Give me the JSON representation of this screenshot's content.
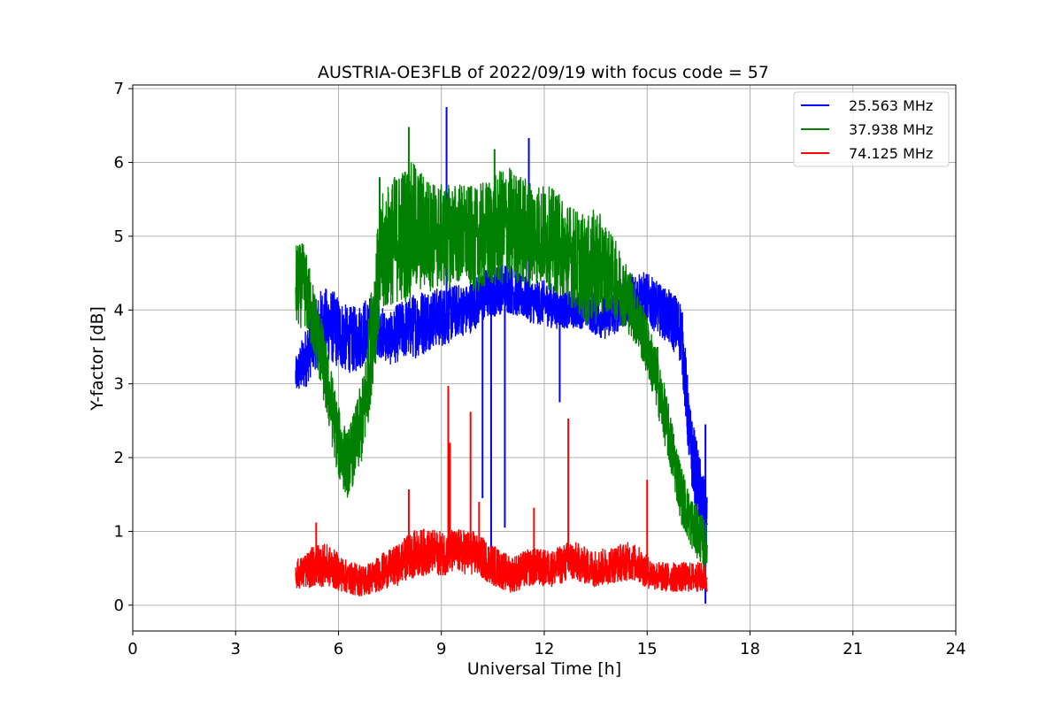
{
  "chart_data": {
    "type": "line",
    "title": "AUSTRIA-OE3FLB of 2022/09/19 with focus code = 57",
    "xlabel": "Universal Time [h]",
    "ylabel": "Y-factor [dB]",
    "xlim": [
      0,
      24
    ],
    "ylim": [
      -0.35,
      7.05
    ],
    "xticks": [
      0,
      3,
      6,
      9,
      12,
      15,
      18,
      21,
      24
    ],
    "yticks": [
      0,
      1,
      2,
      3,
      4,
      5,
      6,
      7
    ],
    "grid": true,
    "legend_position": "top-right",
    "series": [
      {
        "name": "25.563 MHz",
        "color": "#0000ff",
        "x": [
          4.75,
          5.0,
          5.25,
          5.5,
          5.75,
          6.0,
          6.25,
          6.5,
          6.75,
          7.0,
          7.25,
          7.5,
          7.75,
          8.0,
          8.25,
          8.5,
          8.75,
          9.0,
          9.25,
          9.5,
          9.75,
          10.0,
          10.25,
          10.5,
          10.75,
          11.0,
          11.25,
          11.5,
          11.75,
          12.0,
          12.25,
          12.5,
          12.75,
          13.0,
          13.25,
          13.5,
          13.75,
          14.0,
          14.25,
          14.5,
          14.75,
          15.0,
          15.25,
          15.5,
          15.75,
          16.0,
          16.25,
          16.5,
          16.75
        ],
        "y": [
          3.1,
          3.3,
          3.6,
          3.8,
          3.8,
          3.7,
          3.6,
          3.6,
          3.7,
          3.8,
          3.7,
          3.6,
          3.7,
          3.75,
          3.8,
          3.85,
          3.9,
          3.9,
          3.95,
          4.0,
          4.0,
          4.1,
          4.2,
          4.25,
          4.3,
          4.3,
          4.2,
          4.15,
          4.1,
          4.1,
          4.05,
          4.0,
          4.0,
          4.0,
          4.0,
          3.95,
          3.9,
          3.95,
          4.05,
          4.15,
          4.2,
          4.15,
          4.05,
          3.95,
          3.85,
          3.7,
          2.2,
          1.6,
          1.1
        ],
        "spread": [
          0.25,
          0.4,
          0.45,
          0.5,
          0.5,
          0.5,
          0.45,
          0.45,
          0.45,
          0.4,
          0.35,
          0.35,
          0.4,
          0.4,
          0.45,
          0.45,
          0.4,
          0.4,
          0.4,
          0.35,
          0.35,
          0.35,
          0.35,
          0.35,
          0.35,
          0.35,
          0.3,
          0.3,
          0.3,
          0.3,
          0.3,
          0.25,
          0.25,
          0.25,
          0.25,
          0.3,
          0.3,
          0.3,
          0.3,
          0.35,
          0.35,
          0.35,
          0.35,
          0.35,
          0.4,
          0.45,
          0.5,
          0.5,
          0.45
        ],
        "spikes": [
          [
            9.15,
            6.75
          ],
          [
            11.55,
            6.33
          ],
          [
            10.45,
            0.75
          ],
          [
            10.85,
            1.05
          ],
          [
            10.2,
            1.45
          ],
          [
            12.45,
            2.75
          ],
          [
            16.7,
            0.02
          ],
          [
            16.7,
            2.45
          ]
        ]
      },
      {
        "name": "37.938 MHz",
        "color": "#008000",
        "x": [
          4.75,
          5.0,
          5.25,
          5.5,
          5.75,
          6.0,
          6.25,
          6.5,
          6.75,
          7.0,
          7.25,
          7.5,
          7.75,
          8.0,
          8.25,
          8.5,
          8.75,
          9.0,
          9.25,
          9.5,
          9.75,
          10.0,
          10.25,
          10.5,
          10.75,
          11.0,
          11.25,
          11.5,
          11.75,
          12.0,
          12.25,
          12.5,
          12.75,
          13.0,
          13.25,
          13.5,
          13.75,
          14.0,
          14.25,
          14.5,
          14.75,
          15.0,
          15.25,
          15.5,
          15.75,
          16.0,
          16.25,
          16.5,
          16.75
        ],
        "y": [
          4.3,
          4.35,
          3.9,
          3.4,
          2.8,
          2.2,
          1.9,
          2.2,
          2.6,
          3.8,
          4.7,
          4.9,
          5.0,
          5.05,
          5.1,
          5.05,
          5.0,
          5.0,
          5.0,
          5.05,
          5.0,
          4.95,
          5.0,
          5.05,
          5.1,
          5.15,
          5.1,
          5.05,
          5.05,
          5.0,
          4.95,
          4.85,
          4.75,
          4.65,
          4.5,
          4.6,
          4.6,
          4.45,
          4.3,
          4.1,
          3.85,
          3.5,
          3.1,
          2.6,
          2.05,
          1.5,
          1.15,
          0.95,
          0.8
        ],
        "spread": [
          0.6,
          0.55,
          0.5,
          0.5,
          0.5,
          0.5,
          0.45,
          0.5,
          0.6,
          0.8,
          0.85,
          0.85,
          0.9,
          0.95,
          0.9,
          0.8,
          0.75,
          0.7,
          0.7,
          0.7,
          0.7,
          0.7,
          0.75,
          0.75,
          0.8,
          0.8,
          0.75,
          0.75,
          0.7,
          0.7,
          0.7,
          0.7,
          0.7,
          0.7,
          0.75,
          0.8,
          0.6,
          0.55,
          0.5,
          0.45,
          0.4,
          0.4,
          0.4,
          0.4,
          0.4,
          0.4,
          0.35,
          0.35,
          0.3
        ],
        "spikes": [
          [
            8.05,
            6.48
          ],
          [
            10.55,
            6.18
          ],
          [
            7.2,
            5.8
          ],
          [
            15.3,
            3.5
          ],
          [
            16.65,
            0.45
          ]
        ]
      },
      {
        "name": "74.125 MHz",
        "color": "#ff0000",
        "x": [
          4.75,
          5.0,
          5.25,
          5.5,
          5.75,
          6.0,
          6.25,
          6.5,
          6.75,
          7.0,
          7.25,
          7.5,
          7.75,
          8.0,
          8.25,
          8.5,
          8.75,
          9.0,
          9.25,
          9.5,
          9.75,
          10.0,
          10.25,
          10.5,
          10.75,
          11.0,
          11.25,
          11.5,
          11.75,
          12.0,
          12.25,
          12.5,
          12.75,
          13.0,
          13.25,
          13.5,
          13.75,
          14.0,
          14.25,
          14.5,
          14.75,
          15.0,
          15.25,
          15.5,
          15.75,
          16.0,
          16.25,
          16.5,
          16.75
        ],
        "y": [
          0.42,
          0.45,
          0.52,
          0.55,
          0.52,
          0.45,
          0.38,
          0.35,
          0.33,
          0.38,
          0.45,
          0.5,
          0.55,
          0.65,
          0.7,
          0.72,
          0.72,
          0.7,
          0.72,
          0.73,
          0.72,
          0.7,
          0.62,
          0.55,
          0.48,
          0.42,
          0.45,
          0.5,
          0.52,
          0.5,
          0.5,
          0.55,
          0.6,
          0.58,
          0.52,
          0.5,
          0.52,
          0.55,
          0.58,
          0.6,
          0.55,
          0.45,
          0.4,
          0.38,
          0.38,
          0.38,
          0.38,
          0.38,
          0.36
        ],
        "spread": [
          0.2,
          0.22,
          0.28,
          0.3,
          0.28,
          0.25,
          0.22,
          0.22,
          0.22,
          0.22,
          0.25,
          0.25,
          0.28,
          0.3,
          0.32,
          0.32,
          0.3,
          0.3,
          0.3,
          0.3,
          0.3,
          0.3,
          0.28,
          0.28,
          0.26,
          0.25,
          0.25,
          0.25,
          0.25,
          0.25,
          0.25,
          0.26,
          0.28,
          0.26,
          0.25,
          0.25,
          0.25,
          0.25,
          0.26,
          0.26,
          0.25,
          0.22,
          0.2,
          0.2,
          0.2,
          0.2,
          0.2,
          0.2,
          0.2
        ],
        "spikes": [
          [
            9.2,
            2.97
          ],
          [
            9.85,
            2.62
          ],
          [
            12.7,
            2.53
          ],
          [
            15.0,
            1.7
          ],
          [
            8.05,
            1.57
          ],
          [
            9.25,
            2.2
          ],
          [
            10.1,
            1.4
          ],
          [
            11.7,
            1.32
          ],
          [
            5.35,
            1.12
          ]
        ]
      }
    ]
  }
}
